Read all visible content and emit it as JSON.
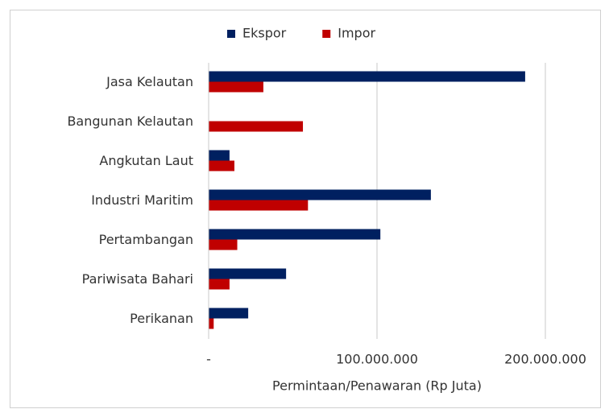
{
  "chart_data": {
    "type": "barh",
    "x_label": "Permintaan/Penawaran (Rp Juta)",
    "categories": [
      "Jasa Kelautan",
      "Bangunan Kelautan",
      "Angkutan Laut",
      "Industri Maritim",
      "Pertambangan",
      "Pariwisata Bahari",
      "Perikanan"
    ],
    "series": [
      {
        "name": "Ekspor",
        "color": "#002060",
        "values": [
          188000000,
          0,
          12400000,
          132000000,
          102000000,
          46000000,
          23500000
        ]
      },
      {
        "name": "Impor",
        "color": "#c00000",
        "values": [
          32500000,
          56000000,
          15300000,
          59000000,
          17000000,
          12400000,
          3000000
        ]
      }
    ],
    "xlim": [
      0,
      200000000
    ],
    "xticks": [
      {
        "value": 0,
        "label": "-"
      },
      {
        "value": 100000000,
        "label": "100.000.000"
      },
      {
        "value": 200000000,
        "label": "200.000.000"
      }
    ],
    "grid": true,
    "legend": "top"
  }
}
